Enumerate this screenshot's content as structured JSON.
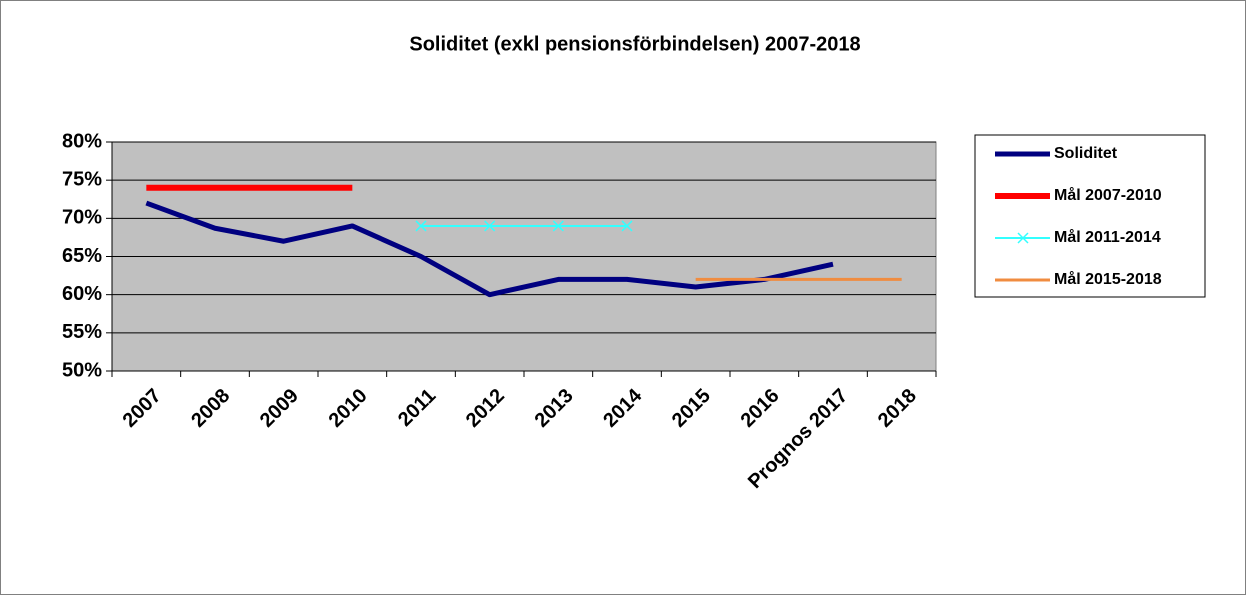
{
  "chart_data": {
    "type": "line",
    "title": "Soliditet (exkl pensionsförbindelsen) 2007-2018",
    "categories": [
      "2007",
      "2008",
      "2009",
      "2010",
      "2011",
      "2012",
      "2013",
      "2014",
      "2015",
      "2016",
      "Prognos 2017",
      "2018"
    ],
    "series": [
      {
        "name": "Soliditet",
        "color": "#000080",
        "values": [
          72,
          68.7,
          67,
          69,
          65,
          60,
          62,
          62,
          61,
          62,
          64,
          null
        ]
      },
      {
        "name": "Mål 2007-2010",
        "color": "#ff0000",
        "values": [
          74,
          74,
          74,
          74,
          null,
          null,
          null,
          null,
          null,
          null,
          null,
          null
        ]
      },
      {
        "name": "Mål 2011-2014",
        "color": "#33ffff",
        "marker": "x",
        "values": [
          null,
          null,
          null,
          null,
          69,
          69,
          69,
          69,
          null,
          null,
          null,
          null
        ]
      },
      {
        "name": "Mål 2015-2018",
        "color": "#f08c40",
        "values": [
          null,
          null,
          null,
          null,
          null,
          null,
          null,
          null,
          62,
          62,
          62,
          62
        ]
      }
    ],
    "ylim": [
      50,
      80
    ],
    "yticks": [
      {
        "value": 50,
        "label": "50%"
      },
      {
        "value": 55,
        "label": "55%"
      },
      {
        "value": 60,
        "label": "60%"
      },
      {
        "value": 65,
        "label": "65%"
      },
      {
        "value": 70,
        "label": "70%"
      },
      {
        "value": 75,
        "label": "75%"
      },
      {
        "value": 80,
        "label": "80%"
      }
    ],
    "grid": true,
    "legend": "right"
  }
}
